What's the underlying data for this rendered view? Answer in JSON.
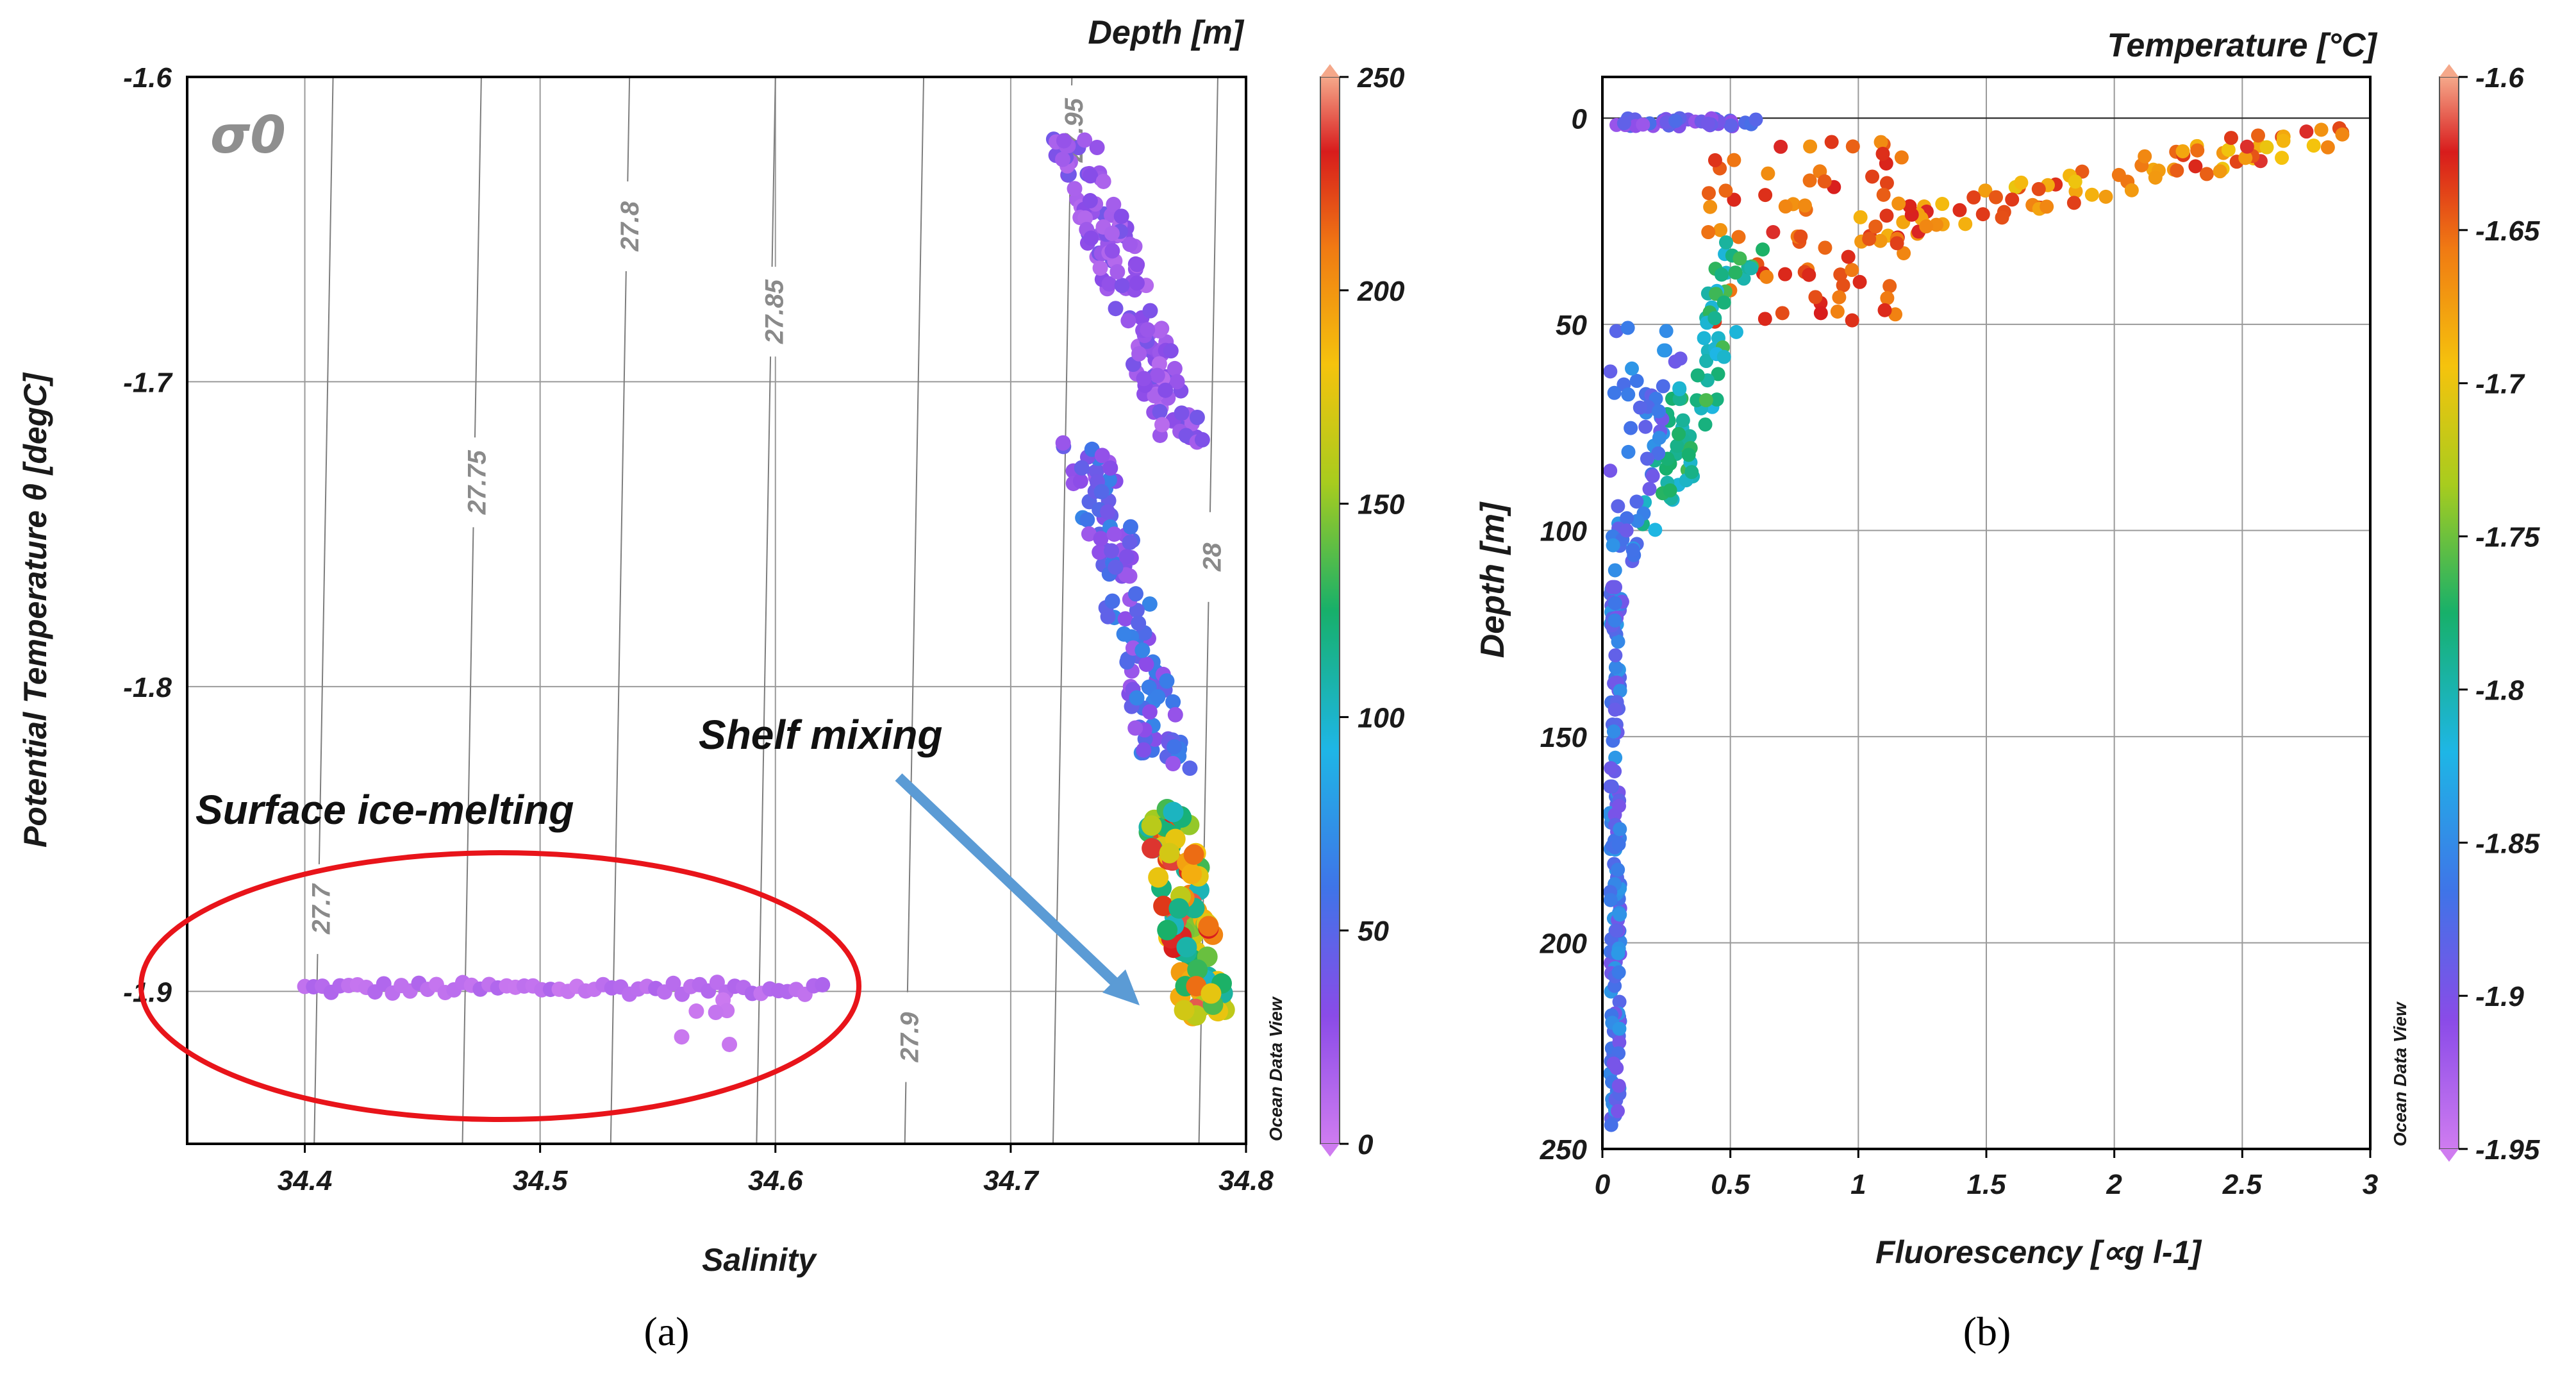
{
  "chart_data": [
    {
      "type": "scatter",
      "panel_label": "(a)",
      "xlabel": "Salinity",
      "ylabel": "Potential Temperature θ [degC]",
      "colorbar_label": "Depth [m]",
      "colorbar_ticks": [
        "0",
        "50",
        "100",
        "150",
        "200",
        "250"
      ],
      "colorbar_range": [
        0,
        250
      ],
      "xlim": [
        34.35,
        34.8
      ],
      "ylim": [
        -1.95,
        -1.6
      ],
      "x_ticks": [
        "34.4",
        "34.5",
        "34.6",
        "34.7",
        "34.8"
      ],
      "y_ticks": [
        "-1.6",
        "-1.7",
        "-1.8",
        "-1.9"
      ],
      "grid": true,
      "sigma_label": "σ0",
      "isopycnals": [
        {
          "label": "27.7",
          "x_bottom": 34.404,
          "x_top": 34.412
        },
        {
          "label": "27.75",
          "x_bottom": 34.467,
          "x_top": 34.475
        },
        {
          "label": "27.8",
          "x_bottom": 34.53,
          "x_top": 34.538
        },
        {
          "label": "27.85",
          "x_bottom": 34.592,
          "x_top": 34.6
        },
        {
          "label": "27.9",
          "x_bottom": 34.655,
          "x_top": 34.663
        },
        {
          "label": "27.95",
          "x_bottom": 34.718,
          "x_top": 34.726
        },
        {
          "label": "28",
          "x_bottom": 34.78,
          "x_top": 34.788
        }
      ],
      "annotations": [
        "Surface ice-melting",
        "Shelf mixing"
      ],
      "watermark": "Ocean Data View",
      "clusters": [
        {
          "desc": "surface line",
          "x": [
            34.4,
            34.62
          ],
          "y": [
            -1.901,
            -1.897
          ],
          "depth": [
            2,
            15
          ],
          "n": 60
        },
        {
          "desc": "meltwater blobs",
          "x": [
            34.56,
            34.59
          ],
          "y": [
            -1.92,
            -1.9
          ],
          "depth": [
            0,
            5
          ],
          "n": 6
        },
        {
          "desc": "upper water column",
          "x": [
            34.71,
            34.79
          ],
          "y": [
            -1.72,
            -1.62
          ],
          "depth": [
            10,
            40
          ],
          "n": 150
        },
        {
          "desc": "mid column",
          "x": [
            34.72,
            34.78
          ],
          "y": [
            -1.83,
            -1.72
          ],
          "depth": [
            20,
            70
          ],
          "n": 120
        },
        {
          "desc": "shelf bottom",
          "x": [
            34.76,
            34.79
          ],
          "y": [
            -1.91,
            -1.84
          ],
          "depth": [
            100,
            245
          ],
          "n": 110
        }
      ]
    },
    {
      "type": "scatter",
      "panel_label": "(b)",
      "xlabel": "Fluorescency [∝g l-1]",
      "ylabel": "Depth [m]",
      "colorbar_label": "Temperature [°C]",
      "colorbar_ticks": [
        "-1.6",
        "-1.65",
        "-1.7",
        "-1.75",
        "-1.8",
        "-1.85",
        "-1.9",
        "-1.95"
      ],
      "colorbar_range": [
        -1.95,
        -1.6
      ],
      "xlim": [
        0,
        3
      ],
      "ylim": [
        250,
        -10
      ],
      "x_ticks": [
        "0",
        "0.5",
        "1",
        "1.5",
        "2",
        "2.5",
        "3"
      ],
      "y_ticks": [
        "0",
        "50",
        "100",
        "150",
        "200",
        "250"
      ],
      "grid": true,
      "watermark": "Ocean Data View",
      "clusters": [
        {
          "desc": "surface strip",
          "x": [
            0.02,
            0.6
          ],
          "y": [
            0,
            2
          ],
          "temp": [
            -1.92,
            -1.87
          ],
          "n": 40
        },
        {
          "desc": "high fluorescence surface",
          "x": [
            1.0,
            2.9
          ],
          "y": [
            0,
            28
          ],
          "temp": [
            -1.7,
            -1.62
          ],
          "n": 90
        },
        {
          "desc": "subsurface maximum",
          "x": [
            0.4,
            1.2
          ],
          "y": [
            5,
            50
          ],
          "temp": [
            -1.67,
            -1.62
          ],
          "n": 70
        },
        {
          "desc": "transition",
          "x": [
            0.2,
            0.7
          ],
          "y": [
            30,
            100
          ],
          "temp": [
            -1.82,
            -1.76
          ],
          "n": 80
        },
        {
          "desc": "deep column",
          "x": [
            0.02,
            0.3
          ],
          "y": [
            50,
            245
          ],
          "temp": [
            -1.9,
            -1.84
          ],
          "n": 200
        }
      ]
    }
  ]
}
